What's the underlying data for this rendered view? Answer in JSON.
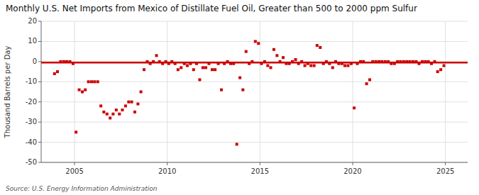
{
  "chart_data": {
    "type": "scatter",
    "title": "Monthly U.S. Net Imports from Mexico of Distillate Fuel Oil, Greater than 500 to 2000 ppm Sulfur",
    "ylabel": "Thousand Barrels per Day",
    "annotations": [
      "Source: U.S. Energy Information Administration"
    ],
    "xlim": [
      2003.2,
      2026.2
    ],
    "ylim": [
      -50,
      20
    ],
    "xticks": [
      2005,
      2010,
      2015,
      2020,
      2025
    ],
    "yticks": [
      -50,
      -40,
      -30,
      -20,
      -10,
      0,
      10,
      20
    ],
    "grid": true,
    "series": [
      {
        "type": "scatter",
        "color": "#cc0000",
        "marker": "square",
        "x": [
          2003.92,
          2004.08,
          2004.25,
          2004.42,
          2004.58,
          2004.75,
          2004.92,
          2005.08,
          2005.25,
          2005.42,
          2005.58,
          2005.75,
          2005.92,
          2006.08,
          2006.25,
          2006.42,
          2006.58,
          2006.75,
          2006.92,
          2007.08,
          2007.25,
          2007.42,
          2007.58,
          2007.75,
          2007.92,
          2008.08,
          2008.25,
          2008.42,
          2008.58,
          2008.75,
          2008.92,
          2009.08,
          2009.25,
          2009.42,
          2009.58,
          2009.75,
          2009.92,
          2010.08,
          2010.25,
          2010.42,
          2010.58,
          2010.75,
          2010.92,
          2011.08,
          2011.25,
          2011.42,
          2011.58,
          2011.75,
          2011.92,
          2012.08,
          2012.25,
          2012.42,
          2012.58,
          2012.75,
          2012.92,
          2013.08,
          2013.25,
          2013.42,
          2013.58,
          2013.75,
          2013.92,
          2014.08,
          2014.25,
          2014.42,
          2014.58,
          2014.75,
          2014.92,
          2015.08,
          2015.25,
          2015.42,
          2015.58,
          2015.75,
          2015.92,
          2016.08,
          2016.25,
          2016.42,
          2016.58,
          2016.75,
          2016.92,
          2017.08,
          2017.25,
          2017.42,
          2017.58,
          2017.75,
          2017.92,
          2018.08,
          2018.25,
          2018.42,
          2018.58,
          2018.75,
          2018.92,
          2019.08,
          2019.25,
          2019.42,
          2019.58,
          2019.75,
          2019.92,
          2020.08,
          2020.25,
          2020.42,
          2020.58,
          2020.75,
          2020.92,
          2021.08,
          2021.25,
          2021.42,
          2021.58,
          2021.75,
          2021.92,
          2022.08,
          2022.25,
          2022.42,
          2022.58,
          2022.75,
          2022.92,
          2023.08,
          2023.25,
          2023.42,
          2023.58,
          2023.75,
          2023.92,
          2024.08,
          2024.25,
          2024.42,
          2024.58,
          2024.75,
          2024.92
        ],
        "values": [
          -6,
          -5,
          0,
          0,
          0,
          0,
          -1,
          -35,
          -14,
          -15,
          -14,
          -10,
          -10,
          -10,
          -10,
          -22,
          -25,
          -26,
          -28,
          -26,
          -24,
          -26,
          -24,
          -22,
          -20,
          -20,
          -25,
          -21,
          -15,
          -4,
          0,
          -1,
          0,
          3,
          0,
          -1,
          0,
          -1,
          0,
          -1,
          -4,
          -3,
          -1,
          -2,
          -1,
          -4,
          -1,
          -9,
          -3,
          -3,
          -1,
          -4,
          -4,
          -1,
          -14,
          -1,
          0,
          -1,
          -1,
          -41,
          -8,
          -14,
          5,
          -1,
          0,
          10,
          9,
          -1,
          0,
          -2,
          -3,
          6,
          3,
          0,
          2,
          -1,
          -1,
          0,
          1,
          -1,
          0,
          -2,
          -1,
          -2,
          -2,
          8,
          7,
          -1,
          0,
          -1,
          -3,
          0,
          -1,
          -1,
          -2,
          -2,
          -1,
          -23,
          -1,
          0,
          0,
          -11,
          -9,
          0,
          0,
          0,
          0,
          0,
          0,
          -1,
          -1,
          0,
          0,
          0,
          0,
          0,
          0,
          0,
          -1,
          0,
          0,
          0,
          -1,
          0,
          -5,
          -4,
          -2
        ]
      },
      {
        "type": "line",
        "color": "#cc0000",
        "x": [
          2003.2,
          2026.2
        ],
        "values": [
          -0.5,
          -0.5
        ]
      }
    ]
  }
}
